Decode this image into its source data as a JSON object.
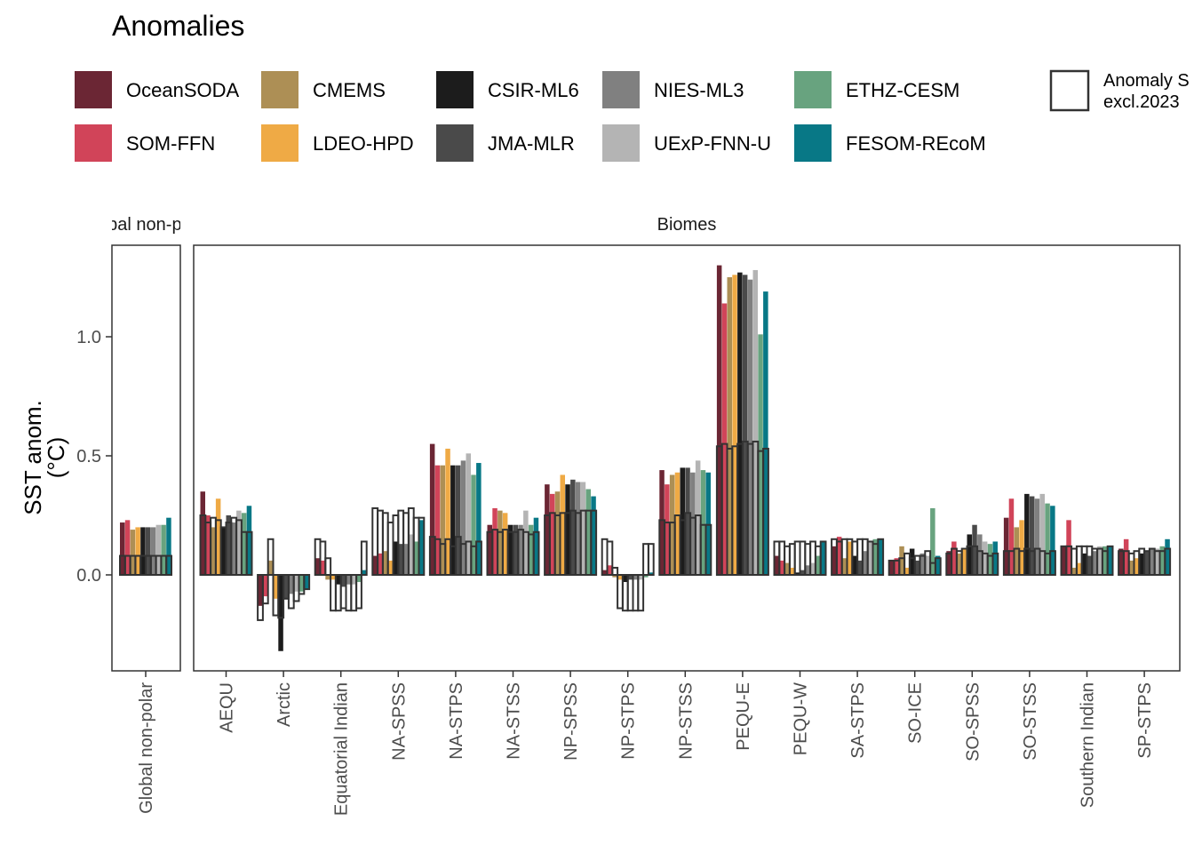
{
  "chart_data": {
    "type": "bar",
    "title": "Anomalies",
    "ylabel_line1": "SST anom.",
    "ylabel_line2": "(°C)",
    "ylim": [
      -0.4,
      1.4
    ],
    "yticks": [
      0.0,
      0.5,
      1.0
    ],
    "ytick_labels": [
      "0.0",
      "0.5",
      "1.0"
    ],
    "grid": false,
    "legend_position": "top",
    "panels": [
      {
        "strip": "Global non-polar",
        "strip_visible": "al non-p",
        "categories": [
          "Global non-polar"
        ]
      },
      {
        "strip": "Biomes",
        "categories": [
          "AEQU",
          "Arctic",
          "Equatorial Indian",
          "NA-SPSS",
          "NA-STPS",
          "NA-STSS",
          "NP-SPSS",
          "NP-STPS",
          "NP-STSS",
          "PEQU-E",
          "PEQU-W",
          "SA-STPS",
          "SO-ICE",
          "SO-SPSS",
          "SO-STSS",
          "Southern Indian",
          "SP-STPS"
        ]
      }
    ],
    "series": [
      {
        "name": "OceanSODA",
        "color": "#6b2634",
        "values": [
          0.22,
          0.35,
          -0.13,
          0.07,
          0.08,
          0.55,
          0.21,
          0.38,
          0.02,
          0.44,
          1.3,
          0.08,
          0.12,
          0.06,
          0.1,
          0.24,
          0.12,
          0.11
        ]
      },
      {
        "name": "SOM-FFN",
        "color": "#d14459",
        "values": [
          0.23,
          0.25,
          -0.09,
          0.06,
          0.09,
          0.46,
          0.28,
          0.34,
          0.04,
          0.38,
          1.14,
          0.06,
          0.16,
          0.07,
          0.14,
          0.32,
          0.23,
          0.15
        ]
      },
      {
        "name": "CMEMS",
        "color": "#ad8f55",
        "values": [
          0.19,
          0.2,
          0.06,
          -0.02,
          0.1,
          0.46,
          0.27,
          0.35,
          -0.01,
          0.42,
          1.25,
          0.05,
          0.07,
          0.12,
          0.09,
          0.2,
          0.03,
          0.06
        ]
      },
      {
        "name": "LDEO-HPD",
        "color": "#efaa45",
        "values": [
          0.2,
          0.32,
          -0.1,
          -0.02,
          0.06,
          0.53,
          0.26,
          0.42,
          -0.02,
          0.43,
          1.26,
          0.03,
          0.14,
          0.03,
          0.11,
          0.23,
          0.05,
          0.07
        ]
      },
      {
        "name": "CSIR-ML6",
        "color": "#1c1c1c",
        "values": [
          0.2,
          0.2,
          -0.32,
          -0.04,
          0.14,
          0.46,
          0.21,
          0.38,
          -0.03,
          0.45,
          1.27,
          0.01,
          0.08,
          0.11,
          0.17,
          0.34,
          0.09,
          0.09
        ]
      },
      {
        "name": "JMA-MLR",
        "color": "#4a4a4a",
        "values": [
          0.2,
          0.25,
          -0.1,
          -0.05,
          0.13,
          0.46,
          0.21,
          0.4,
          -0.02,
          0.45,
          1.26,
          0.02,
          0.06,
          0.06,
          0.21,
          0.33,
          0.08,
          0.1
        ]
      },
      {
        "name": "NIES-ML3",
        "color": "#808080",
        "values": [
          0.2,
          0.22,
          -0.08,
          -0.04,
          0.13,
          0.48,
          0.21,
          0.39,
          -0.02,
          0.43,
          1.24,
          0.04,
          0.1,
          0.09,
          0.17,
          0.32,
          0.1,
          0.11
        ]
      },
      {
        "name": "UExP-FNN-U",
        "color": "#b4b4b4",
        "values": [
          0.21,
          0.27,
          -0.07,
          -0.04,
          0.17,
          0.51,
          0.27,
          0.39,
          -0.02,
          0.48,
          1.28,
          0.05,
          0.14,
          0.08,
          0.14,
          0.34,
          0.12,
          0.11
        ]
      },
      {
        "name": "ETHZ-CESM",
        "color": "#68a37f",
        "values": [
          0.21,
          0.26,
          -0.07,
          -0.03,
          0.14,
          0.42,
          0.21,
          0.36,
          -0.01,
          0.44,
          1.01,
          0.08,
          0.15,
          0.28,
          0.13,
          0.3,
          0.12,
          0.12
        ]
      },
      {
        "name": "FESOM-REcoM",
        "color": "#087886",
        "values": [
          0.24,
          0.29,
          -0.06,
          0.02,
          0.23,
          0.47,
          0.24,
          0.33,
          0.01,
          0.43,
          1.19,
          0.14,
          0.15,
          0.08,
          0.14,
          0.29,
          0.12,
          0.15
        ]
      }
    ],
    "outline_series": {
      "name": "Anomaly S excl.2023",
      "color": "#333333",
      "values": [
        [
          0.08,
          0.08,
          0.08,
          0.08,
          0.08,
          0.08,
          0.08,
          0.08,
          0.08,
          0.08
        ],
        [
          0.25,
          0.22,
          0.24,
          0.23,
          0.2,
          0.22,
          0.24,
          0.23,
          0.18,
          0.18
        ],
        [
          -0.19,
          -0.12,
          0.15,
          -0.17,
          -0.18,
          -0.1,
          -0.14,
          -0.11,
          -0.08,
          -0.06
        ],
        [
          0.15,
          0.14,
          0.07,
          -0.15,
          -0.15,
          -0.14,
          -0.15,
          -0.15,
          -0.14,
          0.14
        ],
        [
          0.28,
          0.27,
          0.26,
          0.22,
          0.25,
          0.27,
          0.26,
          0.28,
          0.24,
          0.24
        ],
        [
          0.16,
          0.15,
          0.13,
          0.15,
          0.12,
          0.16,
          0.13,
          0.14,
          0.12,
          0.14
        ],
        [
          0.18,
          0.19,
          0.18,
          0.19,
          0.18,
          0.18,
          0.19,
          0.18,
          0.17,
          0.18
        ],
        [
          0.25,
          0.26,
          0.25,
          0.26,
          0.26,
          0.27,
          0.26,
          0.27,
          0.27,
          0.27
        ],
        [
          0.15,
          0.14,
          0.03,
          -0.14,
          -0.15,
          -0.15,
          -0.15,
          -0.15,
          0.13,
          0.13
        ],
        [
          0.23,
          0.22,
          0.22,
          0.25,
          0.23,
          0.26,
          0.24,
          0.25,
          0.21,
          0.21
        ],
        [
          0.54,
          0.55,
          0.53,
          0.54,
          0.55,
          0.56,
          0.55,
          0.56,
          0.52,
          0.53
        ],
        [
          0.14,
          0.14,
          0.12,
          0.13,
          0.14,
          0.14,
          0.13,
          0.14,
          0.12,
          0.14
        ],
        [
          0.15,
          0.14,
          0.15,
          0.15,
          0.14,
          0.15,
          0.15,
          0.14,
          0.13,
          0.15
        ],
        [
          0.06,
          0.06,
          0.07,
          0.09,
          0.07,
          0.08,
          0.08,
          0.1,
          0.05,
          0.07
        ],
        [
          0.09,
          0.11,
          0.1,
          0.11,
          0.12,
          0.12,
          0.1,
          0.09,
          0.08,
          0.09
        ],
        [
          0.1,
          0.1,
          0.11,
          0.1,
          0.11,
          0.1,
          0.11,
          0.1,
          0.09,
          0.1
        ],
        [
          0.12,
          0.12,
          0.11,
          0.12,
          0.12,
          0.12,
          0.11,
          0.11,
          0.1,
          0.12
        ],
        [
          0.1,
          0.1,
          0.09,
          0.1,
          0.11,
          0.1,
          0.11,
          0.1,
          0.1,
          0.11
        ]
      ]
    },
    "legend": {
      "entries": [
        "OceanSODA",
        "SOM-FFN",
        "CMEMS",
        "LDEO-HPD",
        "CSIR-ML6",
        "JMA-MLR",
        "NIES-ML3",
        "UExP-FNN-U",
        "ETHZ-CESM",
        "FESOM-REcoM"
      ],
      "outline_label_line1": "Anomaly S",
      "outline_label_line2": "excl.2023"
    }
  }
}
